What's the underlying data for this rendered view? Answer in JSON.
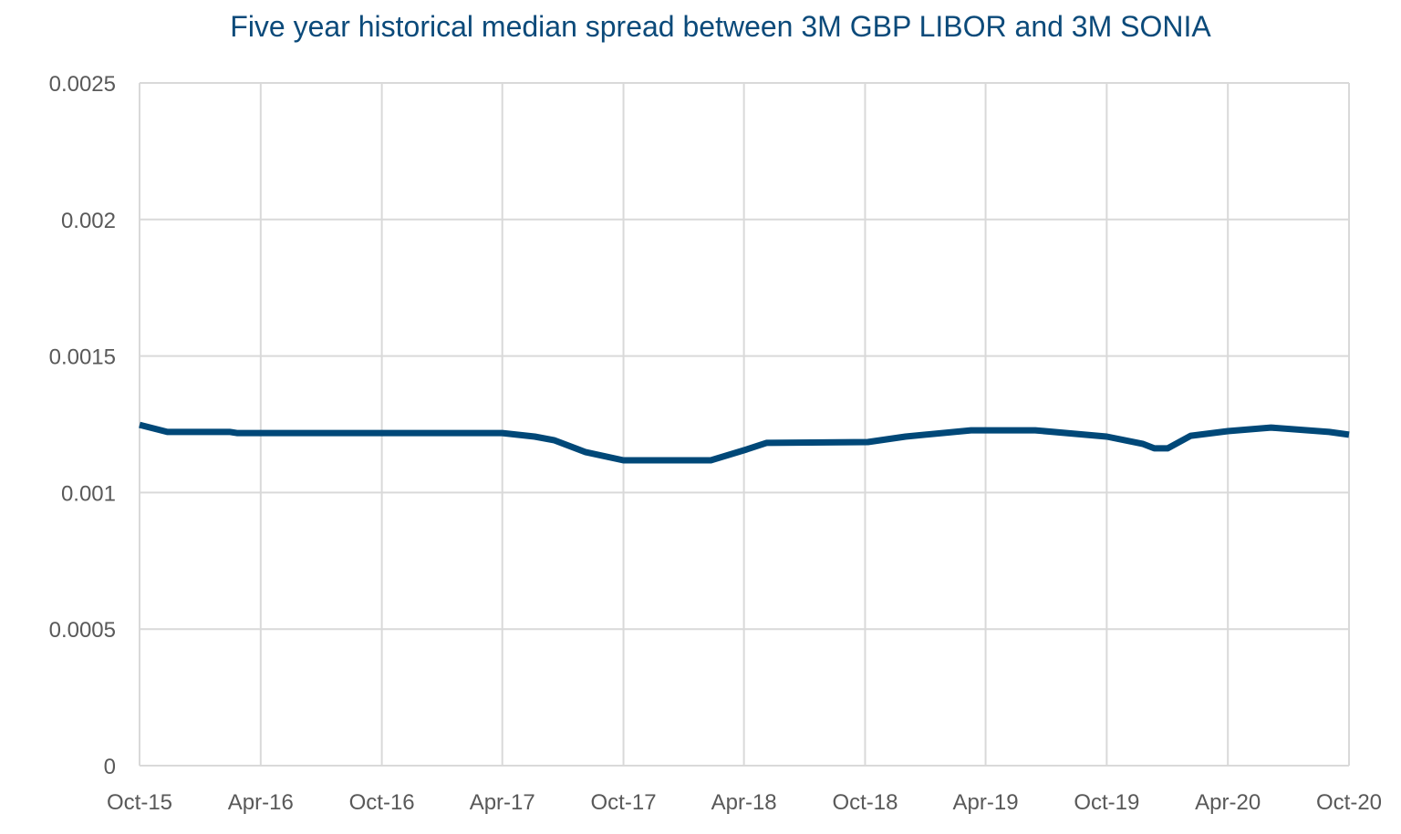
{
  "chart_data": {
    "type": "line",
    "title": "Five year historical median spread between 3M GBP LIBOR and 3M SONIA",
    "xlabel": "",
    "ylabel": "",
    "xlim": [
      "2015-10-01",
      "2020-10-01"
    ],
    "ylim": [
      0,
      0.0025
    ],
    "x_tick_labels": [
      "Oct-15",
      "Apr-16",
      "Oct-16",
      "Apr-17",
      "Oct-17",
      "Apr-18",
      "Oct-18",
      "Apr-19",
      "Oct-19",
      "Apr-20",
      "Oct-20"
    ],
    "x_tick_dates": [
      "2015-10-01",
      "2016-04-01",
      "2016-10-01",
      "2017-04-01",
      "2017-10-01",
      "2018-04-01",
      "2018-10-01",
      "2019-04-01",
      "2019-10-01",
      "2020-04-01",
      "2020-10-01"
    ],
    "y_tick_labels": [
      "0",
      "0.0005",
      "0.001",
      "0.0015",
      "0.002",
      "0.0025"
    ],
    "y_ticks": [
      0,
      0.0005,
      0.001,
      0.0015,
      0.002,
      0.0025
    ],
    "grid": true,
    "legend": "none",
    "colors": {
      "line": "#004878",
      "title": "#0b4a7a",
      "grid": "#d9d9d9",
      "ticks": "#595959"
    },
    "series": [
      {
        "x": [
          "2015-10-01",
          "2015-11-12",
          "2016-02-15",
          "2016-02-25",
          "2017-04-01",
          "2017-05-20",
          "2017-06-18",
          "2017-08-05",
          "2017-10-01",
          "2018-02-10",
          "2018-04-05",
          "2018-05-05",
          "2018-10-05",
          "2018-12-01",
          "2019-03-10",
          "2019-06-15",
          "2019-10-01",
          "2019-11-25",
          "2019-12-12",
          "2020-01-01",
          "2020-02-05",
          "2020-04-01",
          "2020-06-05",
          "2020-09-01",
          "2020-10-01"
        ],
        "y": [
          0.001248,
          0.001222,
          0.001222,
          0.001218,
          0.001218,
          0.001205,
          0.001192,
          0.001148,
          0.001118,
          0.001118,
          0.001158,
          0.001182,
          0.001185,
          0.001205,
          0.001228,
          0.001228,
          0.001205,
          0.001178,
          0.001162,
          0.001162,
          0.001208,
          0.001225,
          0.001238,
          0.001222,
          0.001212
        ]
      }
    ]
  }
}
